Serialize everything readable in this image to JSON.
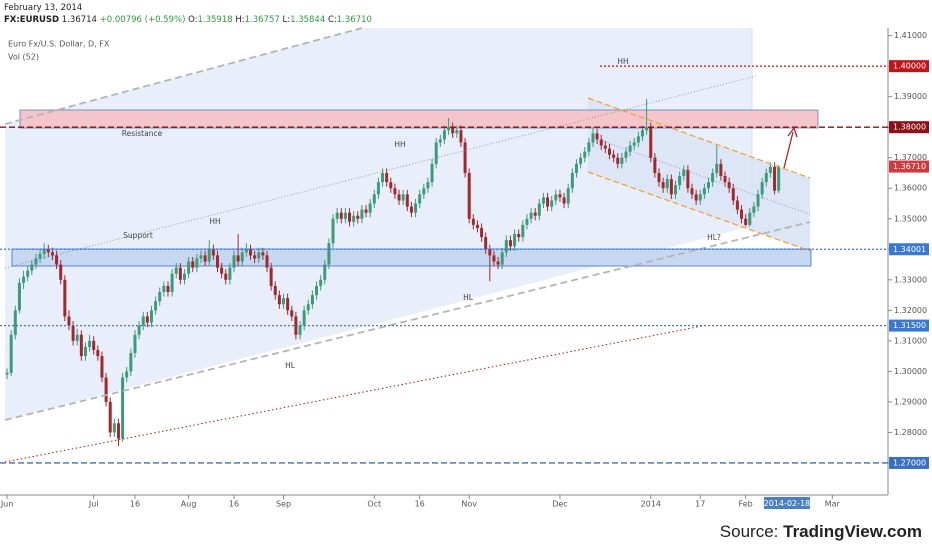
{
  "header": {
    "date": "February 13, 2014",
    "symbol": "FX:EURUSD",
    "price": "1.36714",
    "change": "+0.00796 (+0.59%)",
    "ohlc": [
      {
        "key": "O:",
        "value": "1.35918"
      },
      {
        "key": "H:",
        "value": "1.36757"
      },
      {
        "key": "L:",
        "value": "1.35844"
      },
      {
        "key": "C:",
        "value": "1.36710"
      }
    ]
  },
  "legend": [
    "Euro Fx/U.S. Dollar, D, FX",
    "Vol (52)"
  ],
  "source": {
    "prefix": "Source:",
    "brand": "TradingView.com"
  },
  "chart_data": {
    "type": "candlestick",
    "up_color": "#3d9a7a",
    "down_color": "#a3282c",
    "xlim": [
      -0.5,
      213.5
    ],
    "ylim": [
      1.2595,
      1.4125
    ],
    "yticks": [
      {
        "value": 1.27,
        "label": "1.27000"
      },
      {
        "value": 1.28,
        "label": "1.28000"
      },
      {
        "value": 1.29,
        "label": "1.29000"
      },
      {
        "value": 1.3,
        "label": "1.30000"
      },
      {
        "value": 1.31,
        "label": "1.31000"
      },
      {
        "value": 1.32,
        "label": "1.32000"
      },
      {
        "value": 1.33,
        "label": "1.33000"
      },
      {
        "value": 1.34,
        "label": "1.34000"
      },
      {
        "value": 1.35,
        "label": "1.35000"
      },
      {
        "value": 1.36,
        "label": "1.36000"
      },
      {
        "value": 1.37,
        "label": "1.37000"
      },
      {
        "value": 1.38,
        "label": "1.38000"
      },
      {
        "value": 1.39,
        "label": "1.39000"
      },
      {
        "value": 1.4,
        "label": "1.40000"
      },
      {
        "value": 1.41,
        "label": "1.41000"
      }
    ],
    "xticks": [
      {
        "value": 0,
        "label": "Jun"
      },
      {
        "value": 21,
        "label": "Jul"
      },
      {
        "value": 31,
        "label": "16"
      },
      {
        "value": 44,
        "label": "Aug"
      },
      {
        "value": 55,
        "label": "16"
      },
      {
        "value": 67,
        "label": "Sep"
      },
      {
        "value": 89,
        "label": "Oct"
      },
      {
        "value": 100,
        "label": "16"
      },
      {
        "value": 112,
        "label": "Nov"
      },
      {
        "value": 134,
        "label": "Dec"
      },
      {
        "value": 156,
        "label": "2014"
      },
      {
        "value": 168,
        "label": "17"
      },
      {
        "value": 179,
        "label": "Feb"
      },
      {
        "value": 200,
        "label": "Mar"
      }
    ],
    "cursor_label": {
      "value": 189,
      "label": "2014-02-18"
    },
    "levels": [
      {
        "value": 1.4,
        "label": "1.40000",
        "color": "#c0141b",
        "dash": "2 2",
        "line": true
      },
      {
        "value": 1.38,
        "label": "1.38000",
        "color": "#8e0f16",
        "dash": "6 3",
        "line": true
      },
      {
        "value": 1.3671,
        "label": "1.36710",
        "color": "#d23a3f",
        "dash": "",
        "line": false
      },
      {
        "value": 1.34001,
        "label": "1.34001",
        "color": "#3a78d4",
        "dash": "2 2",
        "line": true
      },
      {
        "value": 1.315,
        "label": "1.31500",
        "color": "#3a78d4",
        "dash": "2 2",
        "line": true
      },
      {
        "value": 1.27,
        "label": "1.27000",
        "color": "#3a6fc4",
        "dash": "6 3",
        "line": true
      }
    ],
    "annotations": [
      "HH",
      "Resistance",
      "HH",
      "HH",
      "Support",
      "HL?",
      "HL",
      "HL"
    ],
    "ohlc": [
      [
        1.299,
        1.301,
        1.2975,
        1.2995
      ],
      [
        1.2995,
        1.3135,
        1.2985,
        1.312
      ],
      [
        1.312,
        1.3215,
        1.3105,
        1.32
      ],
      [
        1.32,
        1.3305,
        1.319,
        1.329
      ],
      [
        1.329,
        1.333,
        1.327,
        1.331
      ],
      [
        1.331,
        1.3345,
        1.3295,
        1.333
      ],
      [
        1.333,
        1.3365,
        1.3315,
        1.335
      ],
      [
        1.335,
        1.3385,
        1.3335,
        1.337
      ],
      [
        1.337,
        1.34,
        1.3355,
        1.3385
      ],
      [
        1.3385,
        1.342,
        1.337,
        1.34
      ],
      [
        1.34,
        1.3415,
        1.3375,
        1.339
      ],
      [
        1.339,
        1.3405,
        1.3365,
        1.338
      ],
      [
        1.338,
        1.3395,
        1.3335,
        1.335
      ],
      [
        1.335,
        1.3365,
        1.3285,
        1.33
      ],
      [
        1.33,
        1.3315,
        1.3165,
        1.318
      ],
      [
        1.318,
        1.32,
        1.3135,
        1.315
      ],
      [
        1.315,
        1.3165,
        1.3085,
        1.31
      ],
      [
        1.31,
        1.314,
        1.3085,
        1.312
      ],
      [
        1.312,
        1.3135,
        1.3035,
        1.305
      ],
      [
        1.305,
        1.3095,
        1.3035,
        1.308
      ],
      [
        1.308,
        1.312,
        1.3065,
        1.31
      ],
      [
        1.31,
        1.3115,
        1.3055,
        1.307
      ],
      [
        1.307,
        1.3085,
        1.3035,
        1.305
      ],
      [
        1.305,
        1.3065,
        1.2965,
        1.298
      ],
      [
        1.298,
        1.2995,
        1.2885,
        1.29
      ],
      [
        1.29,
        1.2915,
        1.2785,
        1.28
      ],
      [
        1.28,
        1.2845,
        1.2785,
        1.283
      ],
      [
        1.283,
        1.2845,
        1.2755,
        1.278
      ],
      [
        1.278,
        1.2995,
        1.277,
        1.298
      ],
      [
        1.298,
        1.3015,
        1.2965,
        1.3
      ],
      [
        1.3,
        1.3075,
        1.2985,
        1.306
      ],
      [
        1.306,
        1.3135,
        1.3045,
        1.312
      ],
      [
        1.312,
        1.3165,
        1.3105,
        1.315
      ],
      [
        1.315,
        1.3195,
        1.3135,
        1.318
      ],
      [
        1.318,
        1.3195,
        1.3145,
        1.316
      ],
      [
        1.316,
        1.3215,
        1.3145,
        1.32
      ],
      [
        1.32,
        1.3245,
        1.3185,
        1.323
      ],
      [
        1.323,
        1.3275,
        1.3215,
        1.326
      ],
      [
        1.326,
        1.3295,
        1.3245,
        1.328
      ],
      [
        1.328,
        1.3295,
        1.3245,
        1.326
      ],
      [
        1.326,
        1.3335,
        1.3245,
        1.332
      ],
      [
        1.332,
        1.3355,
        1.3305,
        1.334
      ],
      [
        1.334,
        1.3355,
        1.3285,
        1.33
      ],
      [
        1.33,
        1.3335,
        1.3285,
        1.332
      ],
      [
        1.332,
        1.3375,
        1.3305,
        1.336
      ],
      [
        1.336,
        1.3375,
        1.3325,
        1.334
      ],
      [
        1.334,
        1.3385,
        1.3325,
        1.337
      ],
      [
        1.337,
        1.3395,
        1.3355,
        1.338
      ],
      [
        1.338,
        1.3395,
        1.3345,
        1.336
      ],
      [
        1.336,
        1.343,
        1.3345,
        1.34
      ],
      [
        1.34,
        1.3415,
        1.3365,
        1.338
      ],
      [
        1.338,
        1.3395,
        1.3325,
        1.334
      ],
      [
        1.334,
        1.3355,
        1.3305,
        1.332
      ],
      [
        1.332,
        1.3335,
        1.3285,
        1.33
      ],
      [
        1.33,
        1.3355,
        1.3285,
        1.334
      ],
      [
        1.334,
        1.3395,
        1.3325,
        1.338
      ],
      [
        1.338,
        1.345,
        1.3345,
        1.336
      ],
      [
        1.336,
        1.3405,
        1.3345,
        1.339
      ],
      [
        1.339,
        1.342,
        1.3375,
        1.34
      ],
      [
        1.34,
        1.3415,
        1.3365,
        1.338
      ],
      [
        1.338,
        1.3395,
        1.3355,
        1.337
      ],
      [
        1.337,
        1.3405,
        1.3355,
        1.339
      ],
      [
        1.339,
        1.3405,
        1.3365,
        1.338
      ],
      [
        1.338,
        1.3395,
        1.3325,
        1.334
      ],
      [
        1.334,
        1.3355,
        1.3265,
        1.328
      ],
      [
        1.328,
        1.3295,
        1.3235,
        1.325
      ],
      [
        1.325,
        1.3265,
        1.3205,
        1.322
      ],
      [
        1.322,
        1.3255,
        1.3205,
        1.324
      ],
      [
        1.324,
        1.3255,
        1.3185,
        1.32
      ],
      [
        1.32,
        1.3215,
        1.3165,
        1.318
      ],
      [
        1.318,
        1.3195,
        1.3105,
        1.312
      ],
      [
        1.312,
        1.3165,
        1.3105,
        1.315
      ],
      [
        1.315,
        1.3215,
        1.3135,
        1.32
      ],
      [
        1.32,
        1.3235,
        1.3185,
        1.322
      ],
      [
        1.322,
        1.3265,
        1.3205,
        1.325
      ],
      [
        1.325,
        1.3295,
        1.3235,
        1.328
      ],
      [
        1.328,
        1.3315,
        1.3265,
        1.33
      ],
      [
        1.33,
        1.3365,
        1.3285,
        1.335
      ],
      [
        1.335,
        1.3435,
        1.3335,
        1.342
      ],
      [
        1.342,
        1.3515,
        1.3405,
        1.35
      ],
      [
        1.35,
        1.3535,
        1.3485,
        1.352
      ],
      [
        1.352,
        1.3535,
        1.3485,
        1.35
      ],
      [
        1.35,
        1.3535,
        1.3485,
        1.352
      ],
      [
        1.352,
        1.3535,
        1.3475,
        1.349
      ],
      [
        1.349,
        1.3525,
        1.3475,
        1.351
      ],
      [
        1.351,
        1.3525,
        1.3485,
        1.35
      ],
      [
        1.35,
        1.3545,
        1.3485,
        1.353
      ],
      [
        1.353,
        1.3545,
        1.3505,
        1.352
      ],
      [
        1.352,
        1.3565,
        1.3505,
        1.355
      ],
      [
        1.355,
        1.3595,
        1.3535,
        1.358
      ],
      [
        1.358,
        1.3635,
        1.3565,
        1.362
      ],
      [
        1.362,
        1.3665,
        1.3605,
        1.365
      ],
      [
        1.365,
        1.3665,
        1.3605,
        1.362
      ],
      [
        1.362,
        1.3635,
        1.3585,
        1.36
      ],
      [
        1.36,
        1.3615,
        1.3565,
        1.358
      ],
      [
        1.358,
        1.3595,
        1.3545,
        1.356
      ],
      [
        1.356,
        1.3595,
        1.3545,
        1.358
      ],
      [
        1.358,
        1.3595,
        1.3525,
        1.354
      ],
      [
        1.354,
        1.3555,
        1.3505,
        1.352
      ],
      [
        1.352,
        1.3565,
        1.3505,
        1.355
      ],
      [
        1.355,
        1.3595,
        1.3535,
        1.358
      ],
      [
        1.358,
        1.3615,
        1.3565,
        1.36
      ],
      [
        1.36,
        1.3635,
        1.3585,
        1.362
      ],
      [
        1.362,
        1.3695,
        1.3605,
        1.368
      ],
      [
        1.368,
        1.3765,
        1.3665,
        1.375
      ],
      [
        1.375,
        1.3775,
        1.3735,
        1.376
      ],
      [
        1.376,
        1.3805,
        1.3745,
        1.379
      ],
      [
        1.379,
        1.383,
        1.3775,
        1.38
      ],
      [
        1.38,
        1.3815,
        1.3765,
        1.378
      ],
      [
        1.378,
        1.3805,
        1.3765,
        1.379
      ],
      [
        1.379,
        1.3805,
        1.3735,
        1.375
      ],
      [
        1.375,
        1.3765,
        1.3635,
        1.365
      ],
      [
        1.365,
        1.3665,
        1.3485,
        1.35
      ],
      [
        1.35,
        1.3515,
        1.3465,
        1.348
      ],
      [
        1.348,
        1.3495,
        1.3455,
        1.347
      ],
      [
        1.347,
        1.3485,
        1.3425,
        1.344
      ],
      [
        1.344,
        1.3455,
        1.3385,
        1.34
      ],
      [
        1.34,
        1.3415,
        1.3295,
        1.338
      ],
      [
        1.338,
        1.3395,
        1.3345,
        1.336
      ],
      [
        1.336,
        1.3375,
        1.3335,
        1.335
      ],
      [
        1.335,
        1.3405,
        1.3335,
        1.339
      ],
      [
        1.339,
        1.3445,
        1.3375,
        1.343
      ],
      [
        1.343,
        1.3445,
        1.3395,
        1.341
      ],
      [
        1.341,
        1.3465,
        1.3395,
        1.345
      ],
      [
        1.345,
        1.3465,
        1.3425,
        1.344
      ],
      [
        1.344,
        1.3495,
        1.3425,
        1.348
      ],
      [
        1.348,
        1.3515,
        1.3465,
        1.35
      ],
      [
        1.35,
        1.3535,
        1.3485,
        1.352
      ],
      [
        1.352,
        1.3535,
        1.3495,
        1.351
      ],
      [
        1.351,
        1.3565,
        1.3495,
        1.355
      ],
      [
        1.355,
        1.3585,
        1.3535,
        1.357
      ],
      [
        1.357,
        1.3585,
        1.3525,
        1.354
      ],
      [
        1.354,
        1.3575,
        1.3525,
        1.356
      ],
      [
        1.356,
        1.3595,
        1.3545,
        1.358
      ],
      [
        1.358,
        1.3595,
        1.3555,
        1.357
      ],
      [
        1.357,
        1.3585,
        1.3535,
        1.355
      ],
      [
        1.355,
        1.3615,
        1.3535,
        1.36
      ],
      [
        1.36,
        1.3665,
        1.3585,
        1.365
      ],
      [
        1.365,
        1.3695,
        1.3635,
        1.368
      ],
      [
        1.368,
        1.3715,
        1.3665,
        1.37
      ],
      [
        1.37,
        1.3735,
        1.3685,
        1.372
      ],
      [
        1.372,
        1.3765,
        1.3705,
        1.375
      ],
      [
        1.375,
        1.38,
        1.3735,
        1.378
      ],
      [
        1.378,
        1.3795,
        1.3745,
        1.376
      ],
      [
        1.376,
        1.3775,
        1.3725,
        1.374
      ],
      [
        1.374,
        1.3755,
        1.3715,
        1.373
      ],
      [
        1.373,
        1.3745,
        1.3695,
        1.371
      ],
      [
        1.371,
        1.3725,
        1.3685,
        1.37
      ],
      [
        1.37,
        1.3715,
        1.3665,
        1.368
      ],
      [
        1.368,
        1.3715,
        1.3665,
        1.37
      ],
      [
        1.37,
        1.3735,
        1.3685,
        1.372
      ],
      [
        1.372,
        1.3755,
        1.3705,
        1.374
      ],
      [
        1.374,
        1.3765,
        1.3725,
        1.375
      ],
      [
        1.375,
        1.3785,
        1.3735,
        1.377
      ],
      [
        1.377,
        1.3805,
        1.3755,
        1.379
      ],
      [
        1.379,
        1.3893,
        1.3775,
        1.38
      ],
      [
        1.38,
        1.3815,
        1.3685,
        1.37
      ],
      [
        1.37,
        1.3715,
        1.3635,
        1.365
      ],
      [
        1.365,
        1.3665,
        1.3605,
        1.362
      ],
      [
        1.362,
        1.3635,
        1.3585,
        1.36
      ],
      [
        1.36,
        1.3645,
        1.3585,
        1.363
      ],
      [
        1.363,
        1.3645,
        1.3565,
        1.358
      ],
      [
        1.358,
        1.3625,
        1.3565,
        1.361
      ],
      [
        1.361,
        1.3655,
        1.3595,
        1.364
      ],
      [
        1.364,
        1.3675,
        1.3625,
        1.366
      ],
      [
        1.366,
        1.3675,
        1.3585,
        1.36
      ],
      [
        1.36,
        1.3615,
        1.3565,
        1.358
      ],
      [
        1.358,
        1.3595,
        1.3545,
        1.356
      ],
      [
        1.356,
        1.3595,
        1.3545,
        1.358
      ],
      [
        1.358,
        1.3615,
        1.3565,
        1.36
      ],
      [
        1.36,
        1.3635,
        1.3585,
        1.362
      ],
      [
        1.362,
        1.3665,
        1.3605,
        1.365
      ],
      [
        1.365,
        1.374,
        1.3635,
        1.368
      ],
      [
        1.368,
        1.3695,
        1.3625,
        1.364
      ],
      [
        1.364,
        1.3655,
        1.3605,
        1.362
      ],
      [
        1.362,
        1.3635,
        1.3585,
        1.36
      ],
      [
        1.36,
        1.3615,
        1.3545,
        1.356
      ],
      [
        1.356,
        1.3575,
        1.3515,
        1.353
      ],
      [
        1.353,
        1.3545,
        1.3485,
        1.35
      ],
      [
        1.35,
        1.3515,
        1.3475,
        1.348
      ],
      [
        1.348,
        1.3535,
        1.3475,
        1.352
      ],
      [
        1.352,
        1.3555,
        1.3505,
        1.354
      ],
      [
        1.354,
        1.3595,
        1.3525,
        1.358
      ],
      [
        1.358,
        1.3635,
        1.3565,
        1.362
      ],
      [
        1.362,
        1.3665,
        1.3605,
        1.365
      ],
      [
        1.365,
        1.3685,
        1.3635,
        1.367
      ],
      [
        1.367,
        1.3685,
        1.358,
        1.3592
      ],
      [
        1.3592,
        1.3676,
        1.3584,
        1.3671
      ]
    ]
  }
}
